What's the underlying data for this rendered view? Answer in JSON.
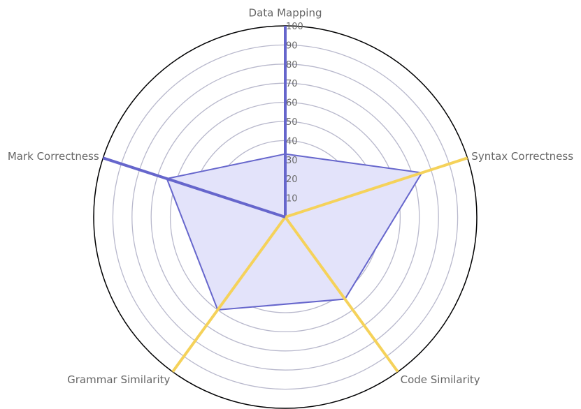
{
  "chart_data": {
    "type": "radar",
    "axes": [
      "Data Mapping",
      "Syntax Correctness",
      "Code Similarity",
      "Grammar Similarity",
      "Mark Correctness"
    ],
    "radial_ticks": [
      "10",
      "20",
      "30",
      "40",
      "50",
      "60",
      "70",
      "80",
      "90",
      "100"
    ],
    "rlim": [
      0,
      100
    ],
    "grid": true,
    "series": [
      {
        "values": [
          33,
          75,
          53,
          60,
          65
        ],
        "fill": "#e3e3fa",
        "stroke": "#6666cc"
      }
    ],
    "axis_colors": [
      "#6666cc",
      "#f5d25a",
      "#f5d25a",
      "#f5d25a",
      "#6666cc"
    ],
    "grid_color": "#b8b8cc",
    "outer_circle_color": "#000000"
  }
}
